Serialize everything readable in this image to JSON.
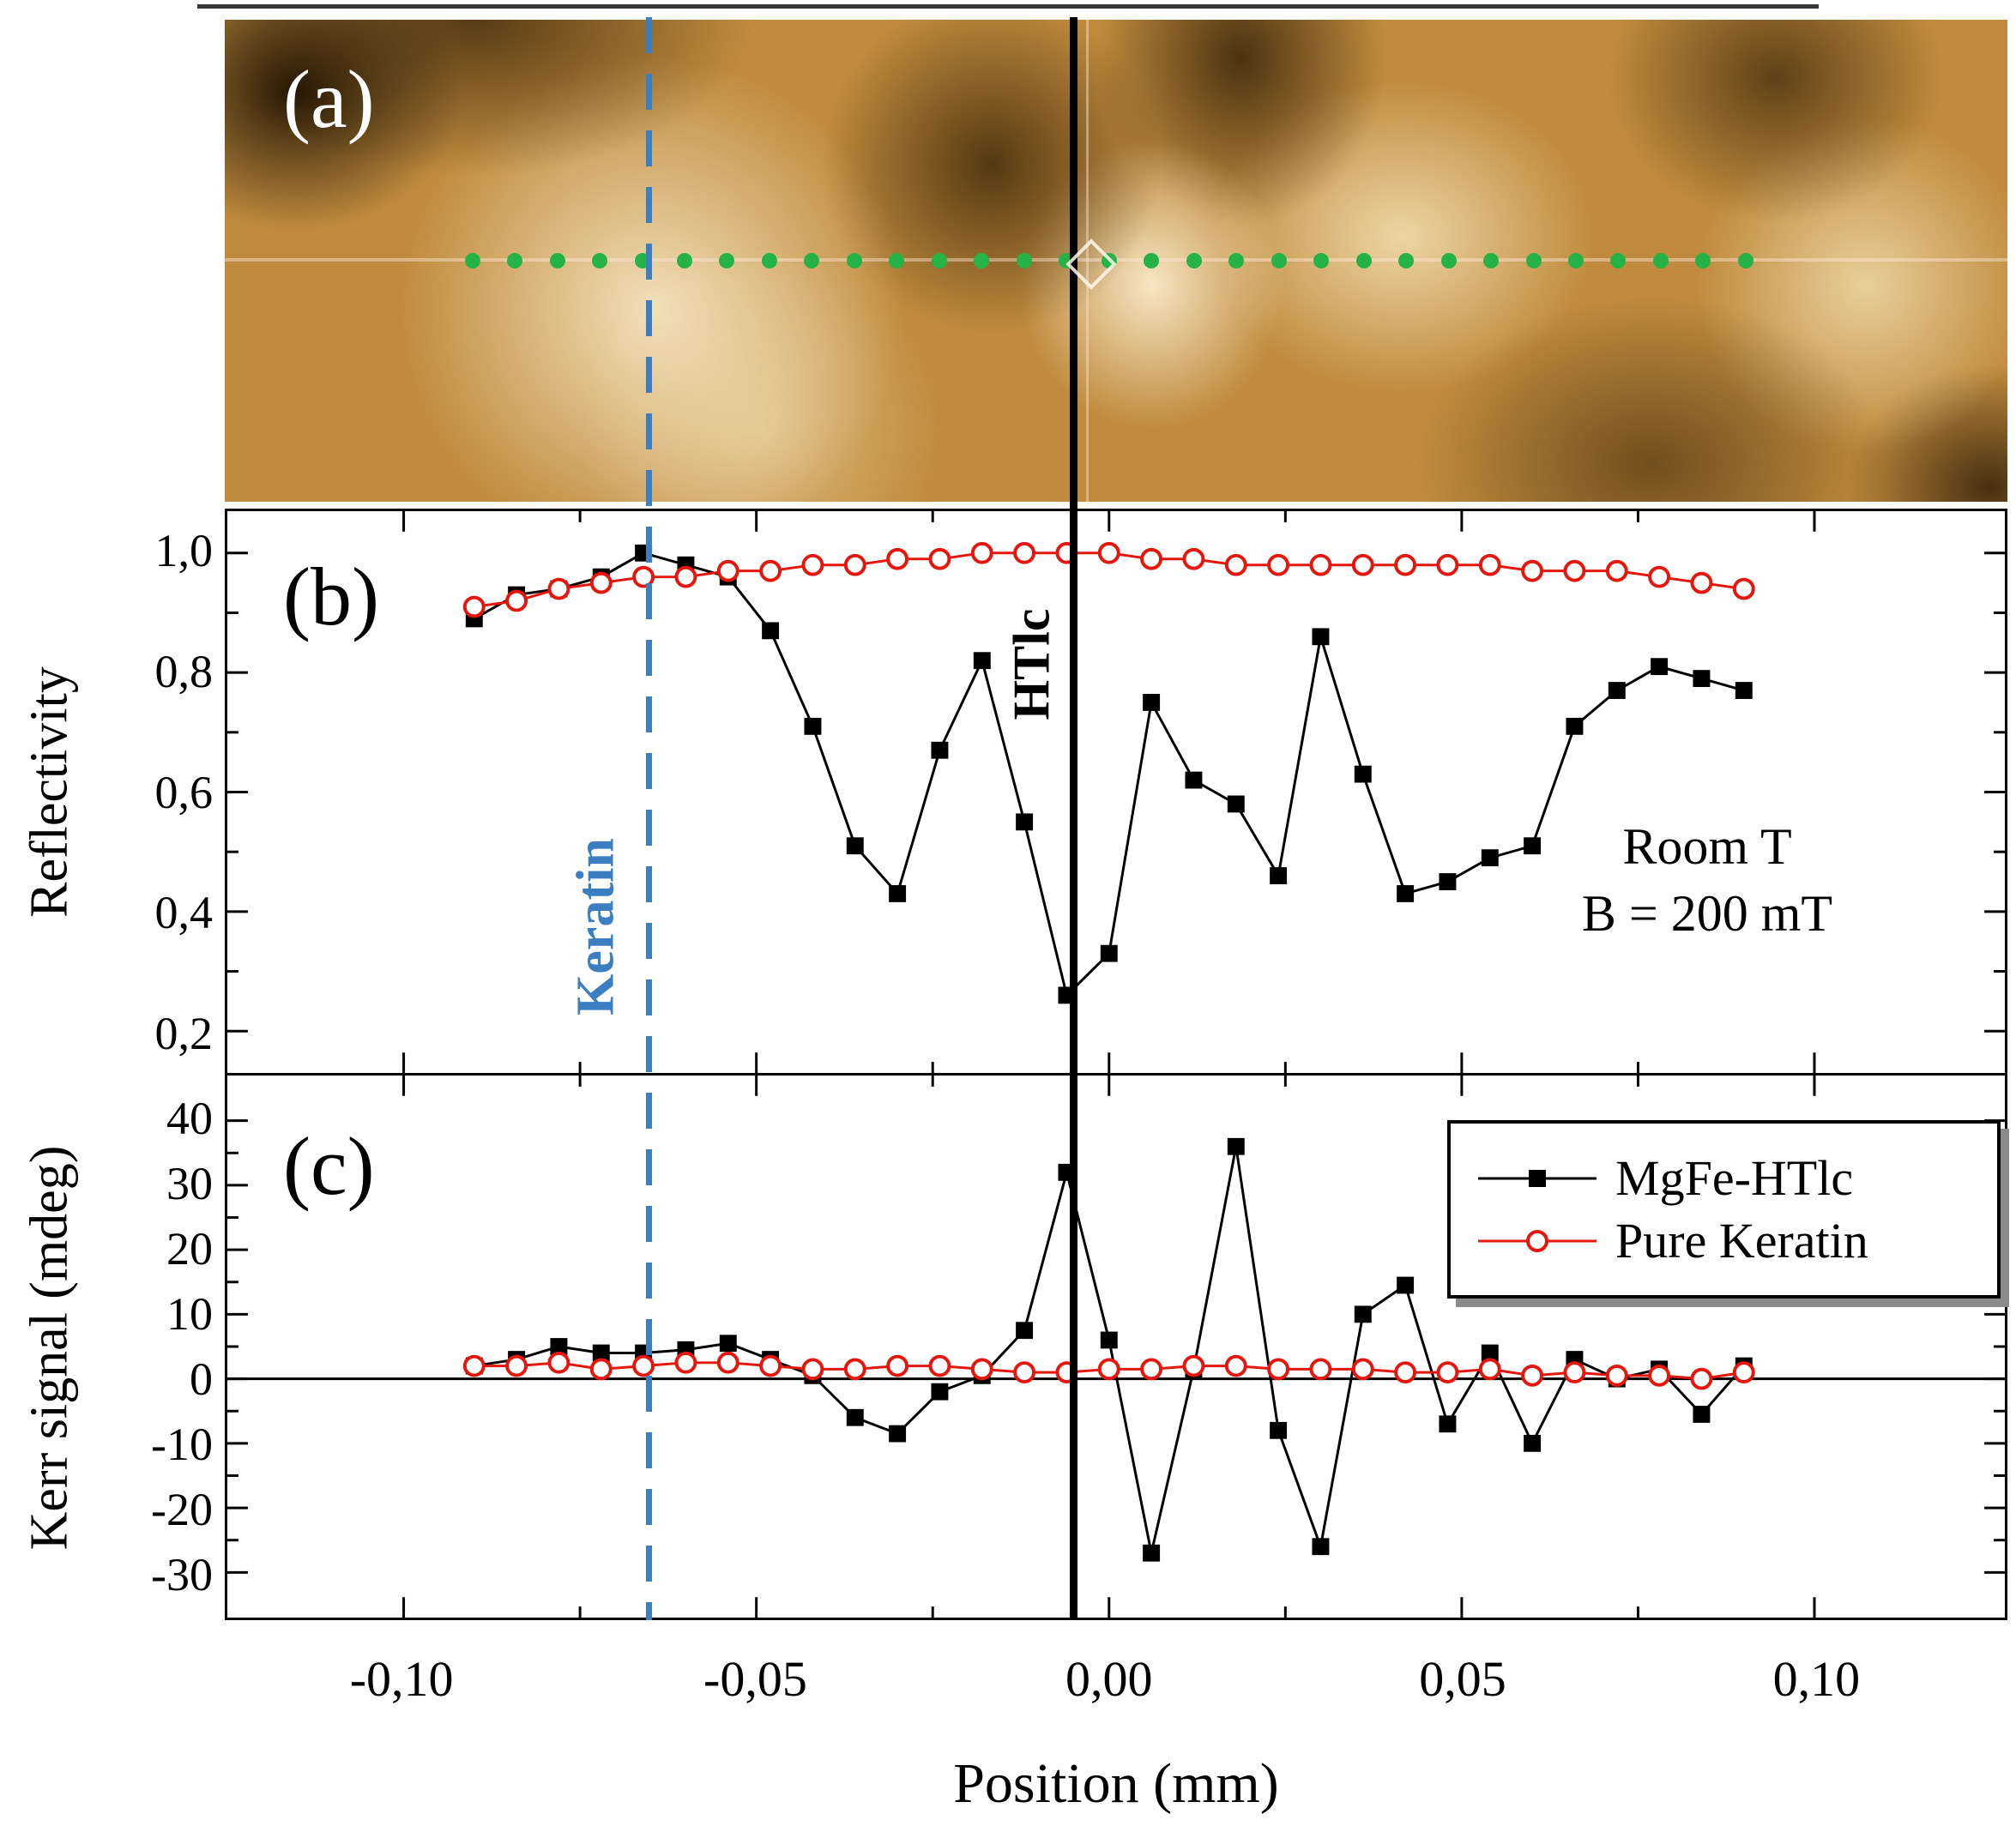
{
  "figure": {
    "panel_labels": {
      "a": "(a)",
      "b": "(b)",
      "c": "(c)"
    },
    "annotations": {
      "keratin_marker": "Keratin",
      "htlc_marker": "HTlc",
      "room_t": "Room T",
      "field": "B = 200 mT"
    },
    "colors": {
      "htlc_series": "#000000",
      "keratin_series": "#e4170e",
      "keratin_marker_line": "#3b7ec2",
      "htlc_marker_line": "#000000",
      "green_dot": "#25b246"
    },
    "markers": {
      "keratin_line_x": -0.065,
      "htlc_line_x": -0.005
    }
  },
  "chart_data": [
    {
      "type": "line",
      "panel": "b",
      "title": "",
      "xlabel": "",
      "ylabel": "Reflectivity",
      "xlim": [
        -0.125,
        0.127
      ],
      "ylim": [
        0.13,
        1.07
      ],
      "xticks": [
        -0.1,
        -0.05,
        0.0,
        0.05,
        0.1
      ],
      "yticks": [
        0.2,
        0.4,
        0.6,
        0.8,
        1.0
      ],
      "ytick_labels": [
        "0,2",
        "0,4",
        "0,6",
        "0,8",
        "1,0"
      ],
      "grid": false,
      "x": [
        -0.09,
        -0.084,
        -0.078,
        -0.072,
        -0.066,
        -0.06,
        -0.054,
        -0.048,
        -0.042,
        -0.036,
        -0.03,
        -0.024,
        -0.018,
        -0.012,
        -0.006,
        0,
        0.006,
        0.012,
        0.018,
        0.024,
        0.03,
        0.036,
        0.042,
        0.048,
        0.054,
        0.06,
        0.066,
        0.072,
        0.078,
        0.084,
        0.09
      ],
      "series": [
        {
          "name": "MgFe-HTlc",
          "color": "#000000",
          "marker": "square",
          "values": [
            0.89,
            0.93,
            0.94,
            0.96,
            1.0,
            0.98,
            0.96,
            0.87,
            0.71,
            0.51,
            0.43,
            0.67,
            0.82,
            0.55,
            0.26,
            0.33,
            0.75,
            0.62,
            0.58,
            0.46,
            0.86,
            0.63,
            0.43,
            0.45,
            0.49,
            0.51,
            0.71,
            0.77,
            0.81,
            0.79,
            0.77
          ]
        },
        {
          "name": "Pure Keratin",
          "color": "#e4170e",
          "marker": "open-circle",
          "values": [
            0.91,
            0.92,
            0.94,
            0.95,
            0.96,
            0.96,
            0.97,
            0.97,
            0.98,
            0.98,
            0.99,
            0.99,
            1.0,
            1.0,
            1.0,
            1.0,
            0.99,
            0.99,
            0.98,
            0.98,
            0.98,
            0.98,
            0.98,
            0.98,
            0.98,
            0.97,
            0.97,
            0.97,
            0.96,
            0.95,
            0.94
          ]
        }
      ],
      "annotations": [
        "Room T",
        "B = 200 mT"
      ]
    },
    {
      "type": "line",
      "panel": "c",
      "title": "",
      "xlabel": "Position (mm)",
      "ylabel": "Kerr signal (mdeg)",
      "xlim": [
        -0.125,
        0.127
      ],
      "ylim": [
        -37,
        47
      ],
      "xticks": [
        -0.1,
        -0.05,
        0.0,
        0.05,
        0.1
      ],
      "xtick_labels": [
        "-0,10",
        "-0,05",
        "0,00",
        "0,05",
        "0,10"
      ],
      "yticks": [
        -30,
        -20,
        -10,
        0,
        10,
        20,
        30,
        40
      ],
      "ytick_labels": [
        "-30",
        "-20",
        "-10",
        "0",
        "10",
        "20",
        "30",
        "40"
      ],
      "zero_line": true,
      "grid": false,
      "x": [
        -0.09,
        -0.084,
        -0.078,
        -0.072,
        -0.066,
        -0.06,
        -0.054,
        -0.048,
        -0.042,
        -0.036,
        -0.03,
        -0.024,
        -0.018,
        -0.012,
        -0.006,
        0,
        0.006,
        0.012,
        0.018,
        0.024,
        0.03,
        0.036,
        0.042,
        0.048,
        0.054,
        0.06,
        0.066,
        0.072,
        0.078,
        0.084,
        0.09
      ],
      "series": [
        {
          "name": "MgFe-HTlc",
          "color": "#000000",
          "marker": "square",
          "values": [
            2,
            3,
            5,
            4,
            4,
            4.5,
            5.5,
            3,
            0.5,
            -6,
            -8.5,
            -2,
            0.5,
            7.5,
            32,
            6,
            -27,
            1.5,
            36,
            -8,
            -26,
            10,
            14.5,
            -7,
            4,
            -10,
            3,
            0,
            1.5,
            -5.5,
            2
          ]
        },
        {
          "name": "Pure Keratin",
          "color": "#e4170e",
          "marker": "open-circle",
          "values": [
            2,
            2,
            2.5,
            1.5,
            2,
            2.5,
            2.5,
            2,
            1.5,
            1.5,
            2,
            2,
            1.5,
            1,
            1,
            1.5,
            1.5,
            2,
            2,
            1.5,
            1.5,
            1.5,
            1,
            1,
            1.5,
            0.5,
            1,
            0.5,
            0.5,
            0,
            1
          ]
        }
      ],
      "legend": [
        {
          "label": "MgFe-HTlc",
          "color": "#000000",
          "marker": "square"
        },
        {
          "label": "Pure Keratin",
          "color": "#e4170e",
          "marker": "open-circle"
        }
      ],
      "legend_position": "top-right"
    }
  ]
}
